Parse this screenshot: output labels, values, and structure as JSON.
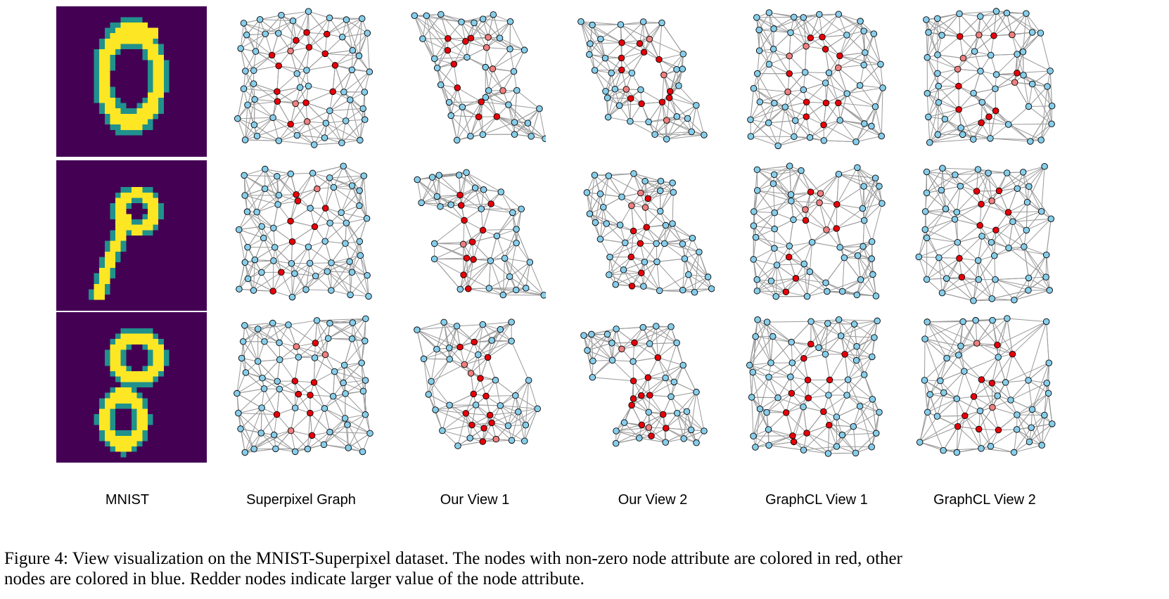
{
  "figure": {
    "columns": [
      "MNIST",
      "Superpixel Graph",
      "Our View 1",
      "Our View 2",
      "GraphCL View 1",
      "GraphCL View 2"
    ],
    "rows": [
      {
        "digit": "0"
      },
      {
        "digit": "9"
      },
      {
        "digit": "8"
      }
    ],
    "colors": {
      "mnist_background": "#440154",
      "mnist_stroke_outer": "#21918c",
      "mnist_stroke_inner": "#fde725",
      "node_blue": "#87ceeb",
      "node_red": "#e8000b",
      "node_light_red": "#f08080",
      "node_outline": "#000000",
      "edge": "#9a9a9a"
    }
  },
  "caption": {
    "line1": "Figure 4: View visualization on the MNIST-Superpixel dataset. The nodes with non-zero node attribute are colored in red, other",
    "line2": "nodes are colored in blue. Redder nodes indicate larger value of the node attribute."
  }
}
